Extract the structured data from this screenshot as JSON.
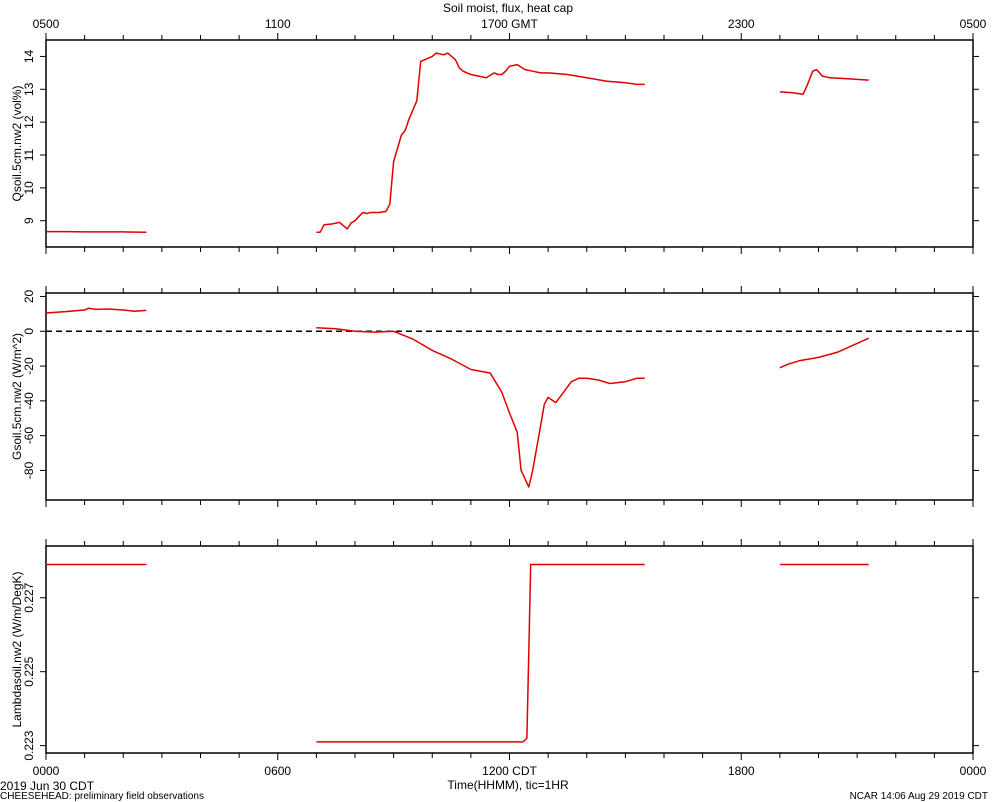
{
  "title": "Soil moist, flux, heat cap",
  "top_axis": {
    "tick_labels": [
      "0500",
      "1100",
      "1700 GMT",
      "2300",
      "0500"
    ]
  },
  "bottom_axis": {
    "tick_labels": [
      "0000",
      "0600",
      "1200 CDT",
      "1800",
      "0000"
    ],
    "xlabel": "Time(HHMM), tic=1HR"
  },
  "footer": {
    "date": "2019 Jun 30 CDT",
    "project": "CHEESEHEAD: preliminary field observations",
    "credit": "NCAR 14:06 Aug 29 2019 CDT"
  },
  "colors": {
    "series": "#e00000",
    "axes": "#000000"
  },
  "chart_data": [
    {
      "type": "line",
      "ylabel": "Qsoil.5cm.nw2 (vol%)",
      "xlim": [
        0,
        24
      ],
      "ylim": [
        8.2,
        14.5
      ],
      "yticks": [
        9,
        10,
        11,
        12,
        13,
        14
      ],
      "ytick_labels": [
        "9",
        "10",
        "11",
        "12",
        "13",
        "14"
      ],
      "segments": [
        {
          "x": [
            0,
            0.5,
            1.0,
            1.5,
            2.0,
            2.6
          ],
          "y": [
            8.67,
            8.67,
            8.66,
            8.66,
            8.66,
            8.65
          ]
        },
        {
          "x": [
            7.0,
            7.1,
            7.2,
            7.4,
            7.6,
            7.8,
            7.9,
            8.0,
            8.2,
            8.3,
            8.4,
            8.6,
            8.8,
            8.9,
            9.0,
            9.1,
            9.2,
            9.3,
            9.4,
            9.6,
            9.7,
            9.9,
            10.0,
            10.1,
            10.3,
            10.4,
            10.5,
            10.6,
            10.7,
            10.8,
            10.9,
            11.0,
            11.2,
            11.4,
            11.6,
            11.7,
            11.8,
            11.9,
            12.0,
            12.2,
            12.4,
            12.6,
            12.8,
            13.0,
            13.5,
            14.0,
            14.5,
            15.0,
            15.3,
            15.5
          ],
          "y": [
            8.65,
            8.65,
            8.88,
            8.9,
            8.95,
            8.75,
            8.93,
            9.0,
            9.25,
            9.22,
            9.25,
            9.25,
            9.28,
            9.5,
            10.8,
            11.2,
            11.6,
            11.75,
            12.1,
            12.65,
            13.85,
            13.95,
            14.0,
            14.1,
            14.05,
            14.1,
            14.0,
            13.9,
            13.65,
            13.55,
            13.5,
            13.45,
            13.4,
            13.35,
            13.5,
            13.45,
            13.45,
            13.55,
            13.7,
            13.75,
            13.6,
            13.55,
            13.5,
            13.5,
            13.45,
            13.35,
            13.25,
            13.2,
            13.15,
            13.15
          ]
        },
        {
          "x": [
            19.0,
            19.3,
            19.6,
            19.7,
            19.85,
            19.95,
            20.1,
            20.3,
            20.6,
            21.0,
            21.3
          ],
          "y": [
            12.92,
            12.9,
            12.85,
            13.1,
            13.55,
            13.6,
            13.4,
            13.35,
            13.33,
            13.3,
            13.28
          ]
        }
      ]
    },
    {
      "type": "line",
      "ylabel": "Gsoil.5cm.nw2 (W/m^2)",
      "xlim": [
        0,
        24
      ],
      "ylim": [
        -97,
        22
      ],
      "yticks": [
        20,
        0,
        -20,
        -40,
        -60,
        -80
      ],
      "ytick_labels": [
        "20",
        "0",
        "-20",
        "-40",
        "-60",
        "-80"
      ],
      "reference_line": 0,
      "segments": [
        {
          "x": [
            0,
            0.5,
            1.0,
            1.1,
            1.3,
            1.6,
            2.0,
            2.3,
            2.6
          ],
          "y": [
            10.5,
            11.3,
            12.2,
            13.2,
            12.6,
            12.8,
            12.2,
            11.5,
            12.0
          ]
        },
        {
          "x": [
            7.0,
            7.5,
            8.0,
            8.5,
            9.0,
            9.5,
            10.0,
            10.5,
            11.0,
            11.5,
            11.8,
            12.0,
            12.2,
            12.3,
            12.5,
            12.6,
            12.8,
            12.9,
            13.0,
            13.2,
            13.4,
            13.6,
            13.8,
            14.0,
            14.3,
            14.6,
            15.0,
            15.3,
            15.5
          ],
          "y": [
            2.0,
            1.5,
            0.0,
            -0.5,
            0.0,
            -4.5,
            -11.0,
            -16.0,
            -22.0,
            -24.0,
            -35.0,
            -47.0,
            -58.0,
            -80.0,
            -89.5,
            -80.0,
            -55.0,
            -42.0,
            -38.0,
            -41.0,
            -35.0,
            -29.0,
            -27.0,
            -27.0,
            -28.0,
            -30.0,
            -29.0,
            -27.0,
            -27.0
          ]
        },
        {
          "x": [
            19.0,
            19.2,
            19.5,
            20.0,
            20.5,
            21.0,
            21.3
          ],
          "y": [
            -21.0,
            -19.0,
            -17.0,
            -15.0,
            -12.0,
            -7.0,
            -4.0
          ]
        }
      ]
    },
    {
      "type": "line",
      "ylabel": "Lambdasoil.nw2 (W/m/DegK)",
      "xlim": [
        0,
        24
      ],
      "ylim": [
        0.2228,
        0.2284
      ],
      "yticks": [
        0.223,
        0.225,
        0.227
      ],
      "ytick_labels": [
        "0.223",
        "0.225",
        "0.227"
      ],
      "segments": [
        {
          "x": [
            0,
            2.6
          ],
          "y": [
            0.2279,
            0.2279
          ]
        },
        {
          "x": [
            7.0,
            12.35,
            12.45,
            12.55,
            15.5
          ],
          "y": [
            0.2231,
            0.2231,
            0.2232,
            0.2279,
            0.2279
          ]
        },
        {
          "x": [
            19.0,
            21.3
          ],
          "y": [
            0.2279,
            0.2279
          ]
        }
      ]
    }
  ]
}
